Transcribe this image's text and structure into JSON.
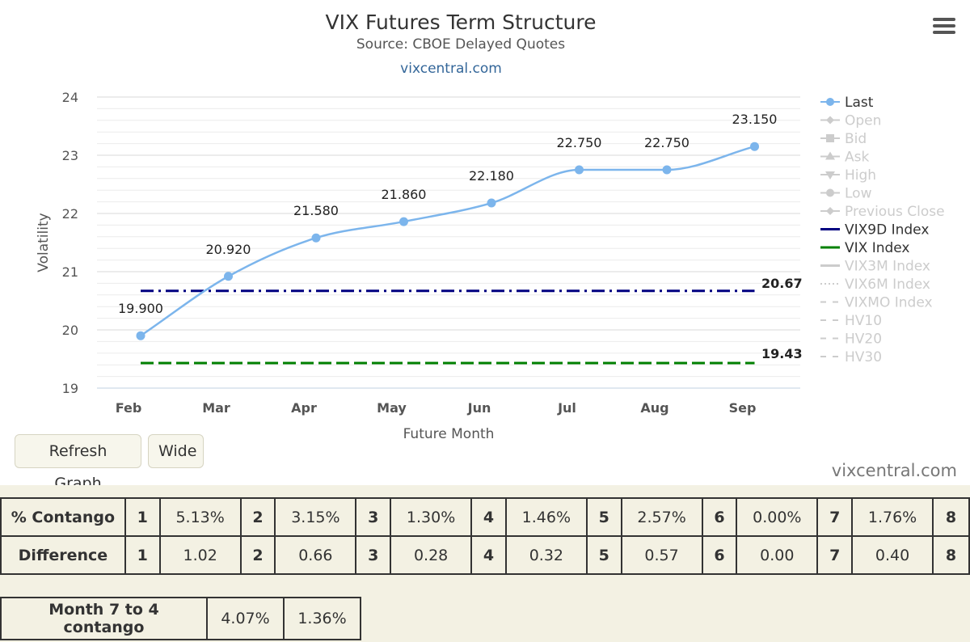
{
  "chart_data": {
    "type": "line",
    "title": "VIX Futures Term Structure",
    "subtitle": "Source: CBOE Delayed Quotes",
    "credit_top": "vixcentral.com",
    "xlabel": "Future Month",
    "ylabel": "Volatility",
    "categories": [
      "Feb",
      "Mar",
      "Apr",
      "May",
      "Jun",
      "Jul",
      "Aug",
      "Sep"
    ],
    "ylim": [
      19,
      24
    ],
    "yticks": [
      19,
      20,
      21,
      22,
      23,
      24
    ],
    "grid": true,
    "legend_position": "right",
    "series": [
      {
        "name": "Last",
        "color": "#7cb5ec",
        "values": [
          19.9,
          20.92,
          21.58,
          21.86,
          22.18,
          22.75,
          22.75,
          23.15
        ],
        "data_labels": [
          "19.900",
          "20.920",
          "21.580",
          "21.860",
          "22.180",
          "22.750",
          "22.750",
          "23.150"
        ]
      },
      {
        "name": "VIX9D Index",
        "color": "#000080",
        "value": 20.67,
        "label": "20.67"
      },
      {
        "name": "VIX Index",
        "color": "#008000",
        "value": 19.43,
        "label": "19.43"
      }
    ],
    "legend": [
      {
        "name": "Last",
        "active": true,
        "color": "#7cb5ec",
        "symbol": "circle-line"
      },
      {
        "name": "Open",
        "active": false,
        "symbol": "diamond-line"
      },
      {
        "name": "Bid",
        "active": false,
        "symbol": "square-line"
      },
      {
        "name": "Ask",
        "active": false,
        "symbol": "triangle-line"
      },
      {
        "name": "High",
        "active": false,
        "symbol": "triangle-down-line"
      },
      {
        "name": "Low",
        "active": false,
        "symbol": "circle-line"
      },
      {
        "name": "Previous Close",
        "active": false,
        "symbol": "diamond-line"
      },
      {
        "name": "VIX9D Index",
        "active": true,
        "color": "#000080",
        "symbol": "solid"
      },
      {
        "name": "VIX Index",
        "active": true,
        "color": "#008000",
        "symbol": "solid"
      },
      {
        "name": "VIX3M Index",
        "active": false,
        "symbol": "solid"
      },
      {
        "name": "VIX6M Index",
        "active": false,
        "symbol": "dotted"
      },
      {
        "name": "VIXMO Index",
        "active": false,
        "symbol": "dash"
      },
      {
        "name": "HV10",
        "active": false,
        "symbol": "dash"
      },
      {
        "name": "HV20",
        "active": false,
        "symbol": "dash"
      },
      {
        "name": "HV30",
        "active": false,
        "symbol": "dash"
      }
    ]
  },
  "buttons": {
    "refresh": "Refresh Graph",
    "wide": "Wide"
  },
  "credit_bottom": "vixcentral.com",
  "table": {
    "contango_label": "% Contango",
    "difference_label": "Difference",
    "indices": [
      "1",
      "2",
      "3",
      "4",
      "5",
      "6",
      "7",
      "8"
    ],
    "contango": [
      "5.13%",
      "3.15%",
      "1.30%",
      "1.46%",
      "2.57%",
      "0.00%",
      "1.76%"
    ],
    "difference": [
      "1.02",
      "0.66",
      "0.28",
      "0.32",
      "0.57",
      "0.00",
      "0.40"
    ]
  },
  "month74": {
    "label": "Month 7 to 4 contango",
    "values": [
      "4.07%",
      "1.36%"
    ]
  }
}
